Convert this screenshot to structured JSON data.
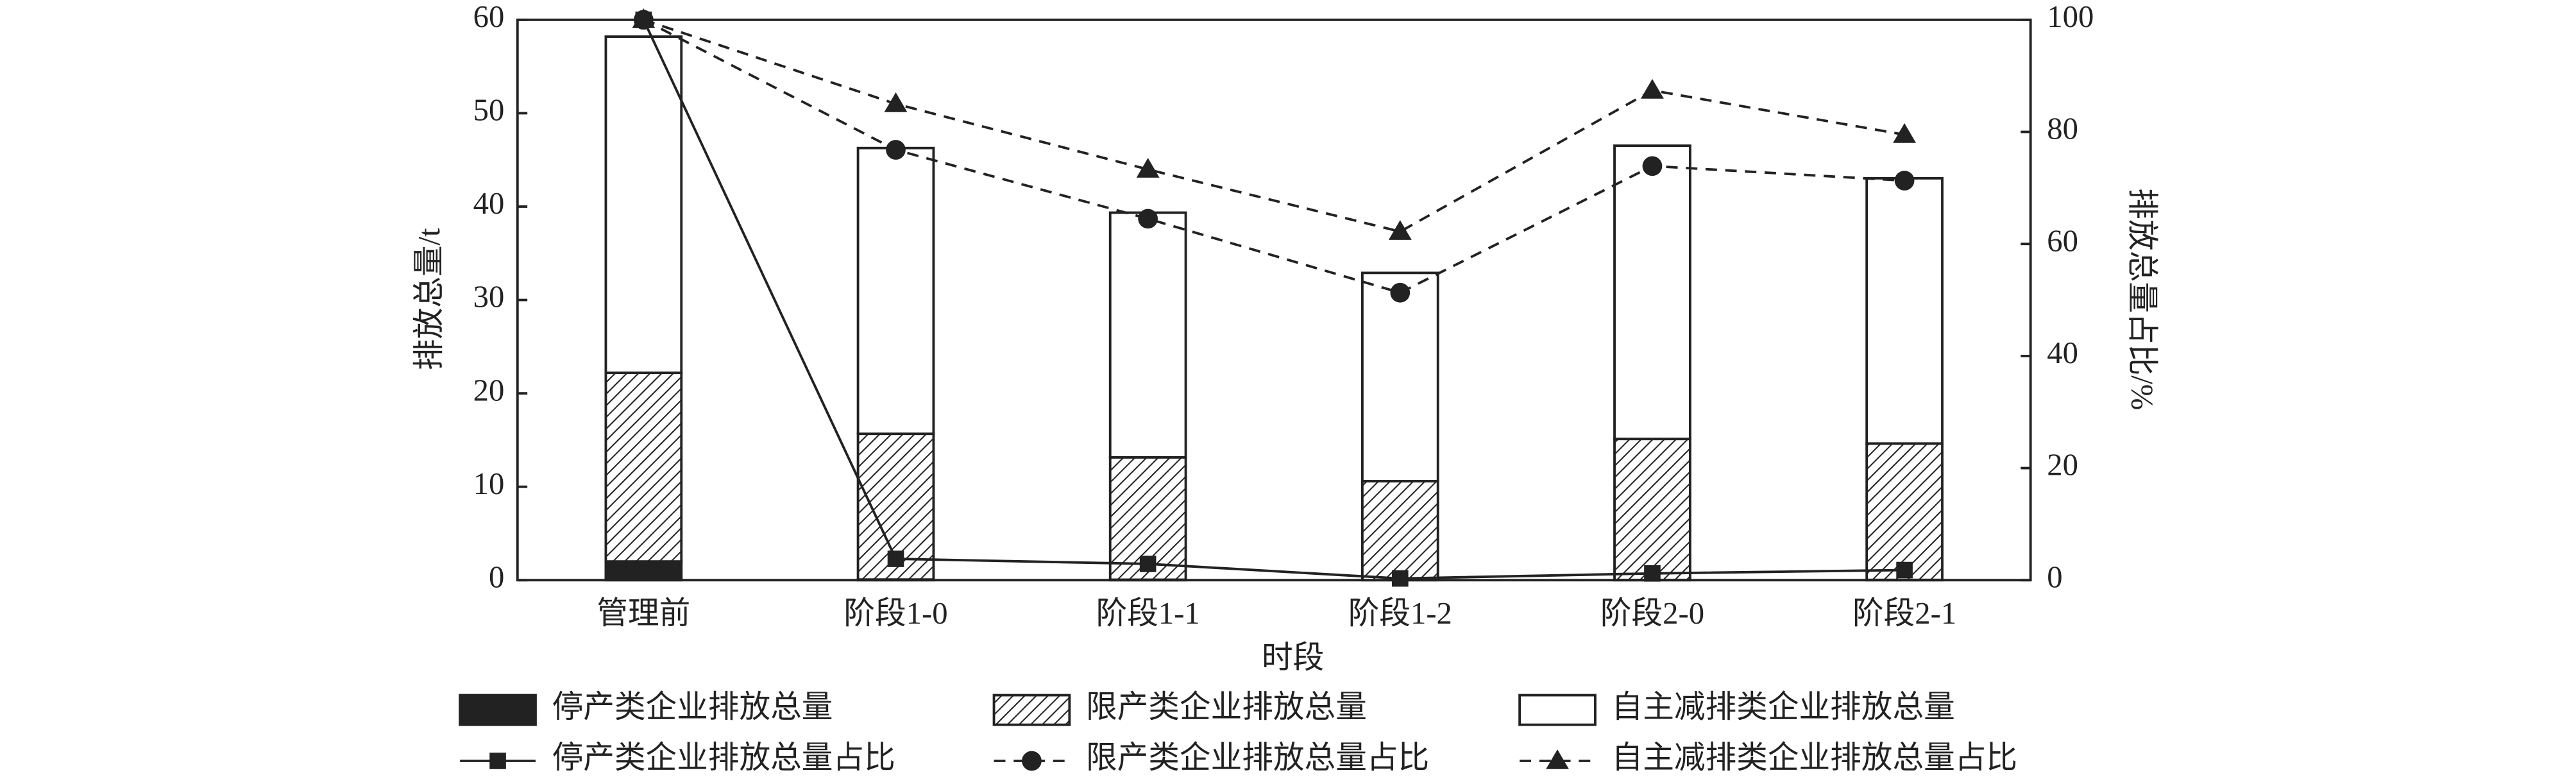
{
  "chart_data": {
    "type": "bar",
    "x_label": "时段",
    "y_label": "排放总量/t",
    "y2_label": "排放总量占比/%",
    "categories": [
      "管理前",
      "阶段1-0",
      "阶段1-1",
      "阶段1-2",
      "阶段2-0",
      "阶段2-1"
    ],
    "ylim": [
      0,
      60
    ],
    "yticks": [
      0,
      10,
      20,
      30,
      40,
      50,
      60
    ],
    "y2lim": [
      0,
      100
    ],
    "y2ticks": [
      0,
      20,
      40,
      60,
      80,
      100
    ],
    "series": [
      {
        "name": "停产类企业排放总量",
        "type": "bar",
        "color": "#222222",
        "values": [
          2,
          0.07,
          0.05,
          0,
          0.02,
          0.03
        ]
      },
      {
        "name": "限产类企业排放总量",
        "type": "bar",
        "color": "#222222",
        "pattern": "hatch",
        "values": [
          20.2,
          15.6,
          13.1,
          10.6,
          15.1,
          14.6
        ]
      },
      {
        "name": "自主减排类企业排放总量",
        "type": "bar",
        "color": "#ffffff",
        "values": [
          36,
          30.6,
          26.2,
          22.3,
          31.4,
          28.4
        ]
      },
      {
        "name": "停产类企业排放总量占比",
        "type": "line",
        "axis": "y2",
        "color": "#222222",
        "marker": "square",
        "dashed": false,
        "values": [
          100,
          3.8,
          2.9,
          0.3,
          1.2,
          1.8
        ]
      },
      {
        "name": "限产类企业排放总量占比",
        "type": "line",
        "axis": "y2",
        "color": "#222222",
        "marker": "circle",
        "dashed": true,
        "values": [
          100,
          76.8,
          64.5,
          51.3,
          73.9,
          71.3
        ]
      },
      {
        "name": "自主减排类企业排放总量占比",
        "type": "line",
        "axis": "y2",
        "color": "#222222",
        "marker": "triangle",
        "dashed": true,
        "values": [
          100,
          85,
          73.3,
          62.2,
          87.4,
          79.5
        ]
      }
    ]
  }
}
